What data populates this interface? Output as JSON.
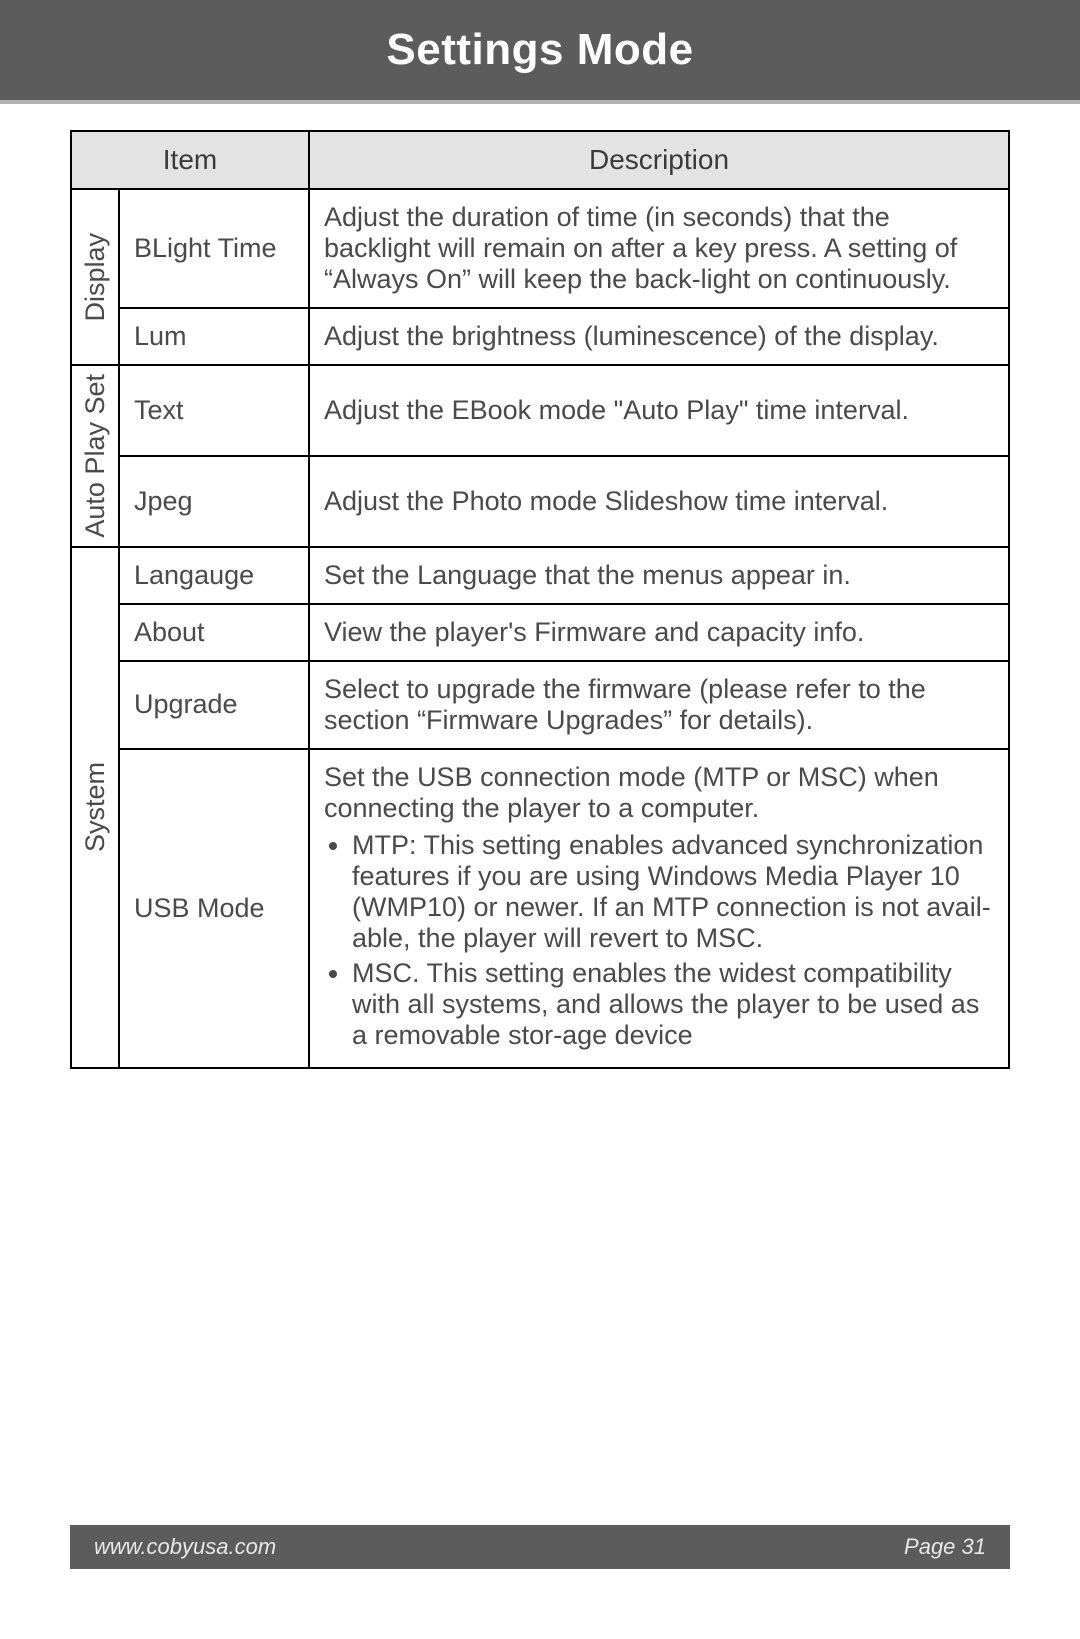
{
  "header": {
    "title": "Settings Mode"
  },
  "table": {
    "columns": {
      "item": "Item",
      "description": "Description"
    },
    "groups": [
      {
        "group_label": "Display",
        "rows": [
          {
            "item": "BLight Time",
            "description": "Adjust the duration of time (in seconds) that the backlight will remain on after a key press. A setting of “Always On” will keep the back-light on continuously."
          },
          {
            "item": "Lum",
            "description": "Adjust the brightness (luminescence) of the display."
          }
        ]
      },
      {
        "group_label": "Auto Play Set",
        "rows": [
          {
            "item": "Text",
            "description": "Adjust the EBook mode \"Auto Play\" time interval."
          },
          {
            "item": "Jpeg",
            "description": "Adjust the Photo mode Slideshow time interval."
          }
        ]
      },
      {
        "group_label": "System",
        "rows": [
          {
            "item": "Langauge",
            "description": "Set the Language that the menus appear in."
          },
          {
            "item": "About",
            "description": "View the player's Firmware and capacity info."
          },
          {
            "item": "Upgrade",
            "description": "Select to upgrade the firmware (please refer to the section “Firmware Upgrades” for details)."
          },
          {
            "item": "USB Mode",
            "description_intro": "Set the USB connection mode (MTP or MSC) when connecting the player to a computer.",
            "bullets": [
              "MTP: This setting enables advanced synchronization features if you are using Windows Media Player 10 (WMP10) or newer. If an MTP connection is not avail-able, the player will revert to MSC.",
              "MSC. This setting enables the widest compatibility with all systems, and allows the player to be used as a removable stor-age device"
            ]
          }
        ]
      }
    ]
  },
  "footer": {
    "url": "www.cobyusa.com",
    "page": "Page 31"
  },
  "styling": {
    "header_bg": "#5c5c5c",
    "header_border": "#b0b0b0",
    "header_text": "#ffffff",
    "header_fontsize": 44,
    "cell_border": "#000000",
    "cell_text": "#4a4a4a",
    "cell_fontsize": 27,
    "th_bg": "#e3e3e3",
    "footer_bg": "#5c5c5c",
    "footer_text": "#e8e8e8",
    "footer_fontsize": 22,
    "page_bg": "#ffffff"
  }
}
